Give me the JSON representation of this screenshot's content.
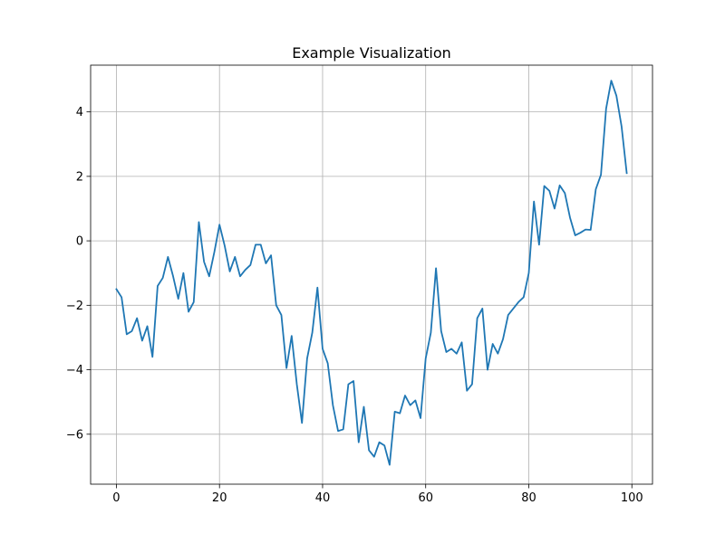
{
  "chart_data": {
    "type": "line",
    "title": "Example Visualization",
    "xlabel": "",
    "ylabel": "",
    "xlim": [
      -5,
      104
    ],
    "ylim": [
      -7.55,
      5.45
    ],
    "xticks": [
      0,
      20,
      40,
      60,
      80,
      100
    ],
    "yticks": [
      -6,
      -4,
      -2,
      0,
      2,
      4
    ],
    "grid": true,
    "series": [
      {
        "color": "#1f77b4",
        "x": [
          0,
          1,
          2,
          3,
          4,
          5,
          6,
          7,
          8,
          9,
          10,
          11,
          12,
          13,
          14,
          15,
          16,
          17,
          18,
          19,
          20,
          21,
          22,
          23,
          24,
          25,
          26,
          27,
          28,
          29,
          30,
          31,
          32,
          33,
          34,
          35,
          36,
          37,
          38,
          39,
          40,
          41,
          42,
          43,
          44,
          45,
          46,
          47,
          48,
          49,
          50,
          51,
          52,
          53,
          54,
          55,
          56,
          57,
          58,
          59,
          60,
          61,
          62,
          63,
          64,
          65,
          66,
          67,
          68,
          69,
          70,
          71,
          72,
          73,
          74,
          75,
          76,
          77,
          78,
          79,
          80,
          81,
          82,
          83,
          84,
          85,
          86,
          87,
          88,
          89,
          90,
          91,
          92,
          93,
          94,
          95,
          96,
          97,
          98,
          99
        ],
        "y": [
          -1.5,
          -1.75,
          -2.9,
          -2.8,
          -2.4,
          -3.1,
          -2.65,
          -3.6,
          -1.4,
          -1.15,
          -0.5,
          -1.1,
          -1.8,
          -1.0,
          -2.2,
          -1.9,
          0.58,
          -0.65,
          -1.1,
          -0.35,
          0.5,
          -0.15,
          -0.95,
          -0.5,
          -1.1,
          -0.9,
          -0.75,
          -0.12,
          -0.12,
          -0.7,
          -0.45,
          -2.0,
          -2.3,
          -3.95,
          -2.95,
          -4.45,
          -5.65,
          -3.65,
          -2.85,
          -1.45,
          -3.35,
          -3.8,
          -5.1,
          -5.9,
          -5.85,
          -4.45,
          -4.35,
          -6.25,
          -5.15,
          -6.5,
          -6.7,
          -6.25,
          -6.35,
          -6.95,
          -5.3,
          -5.35,
          -4.8,
          -5.1,
          -4.95,
          -5.5,
          -3.65,
          -2.85,
          -0.85,
          -2.8,
          -3.45,
          -3.35,
          -3.5,
          -3.15,
          -4.65,
          -4.45,
          -2.4,
          -2.1,
          -4.0,
          -3.2,
          -3.5,
          -3.05,
          -2.3,
          -2.1,
          -1.9,
          -1.75,
          -1.0,
          1.22,
          -0.12,
          1.7,
          1.55,
          1.0,
          1.72,
          1.48,
          0.72,
          0.17,
          0.25,
          0.35,
          0.34,
          1.6,
          2.05,
          4.1,
          4.97,
          4.5,
          3.55,
          2.1
        ]
      }
    ]
  }
}
